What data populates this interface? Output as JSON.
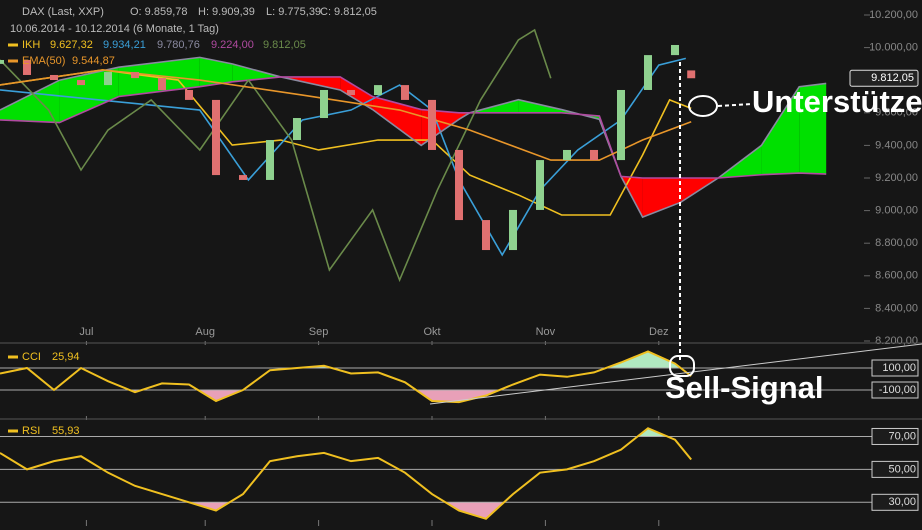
{
  "chart_data": {
    "type": "candlestick",
    "header": {
      "instrument": "DAX (Last, XXP)",
      "ohlc": [
        "O: 9.859,78",
        "H: 9.909,39",
        "L: 9.775,39",
        "C: 9.812,05"
      ],
      "period": "10.06.2014 - 10.12.2014 (6 Monate, 1 Tag)",
      "ikh_label": "IKH"
    },
    "last_price_label": "9.812,05",
    "annotations": [
      "Unterstützen",
      "Sell-Signal"
    ],
    "xlim": [
      0,
      160
    ],
    "xticks": [
      {
        "value": 16,
        "label": "Jul"
      },
      {
        "value": 38,
        "label": "Aug"
      },
      {
        "value": 59,
        "label": "Sep"
      },
      {
        "value": 80,
        "label": "Okt"
      },
      {
        "value": 101,
        "label": "Nov"
      },
      {
        "value": 122,
        "label": "Dez"
      }
    ],
    "ylim": [
      8200,
      10200
    ],
    "yticks": [
      {
        "value": 8200,
        "label": "8.200,00"
      },
      {
        "value": 8400,
        "label": "8.400,00"
      },
      {
        "value": 8600,
        "label": "8.600,00"
      },
      {
        "value": 8800,
        "label": "8.800,00"
      },
      {
        "value": 9000,
        "label": "9.000,00"
      },
      {
        "value": 9200,
        "label": "9.200,00"
      },
      {
        "value": 9400,
        "label": "9.400,00"
      },
      {
        "value": 9600,
        "label": "9.600,00"
      },
      {
        "value": 9800,
        "label": "9.800,00"
      },
      {
        "value": 10000,
        "label": "10.000,00"
      },
      {
        "value": 10200,
        "label": "10.200,00"
      }
    ],
    "up_color": "#8fd18f",
    "down_color": "#e07070",
    "x": [
      0,
      5,
      10,
      15,
      20,
      25,
      30,
      35,
      40,
      45,
      50,
      55,
      60,
      65,
      70,
      75,
      80,
      85,
      90,
      95,
      100,
      105,
      110,
      115,
      120,
      125,
      128
    ],
    "open": [
      9900,
      9924,
      9832,
      9801,
      9770,
      9850,
      9813,
      9740,
      9679,
      9218,
      9188,
      9433,
      9568,
      9740,
      9709,
      9770,
      9679,
      9372,
      8942,
      8758,
      9004,
      9310,
      9372,
      9310,
      9740,
      9954,
      9860
    ],
    "close": [
      9924,
      9832,
      9801,
      9770,
      9850,
      9813,
      9740,
      9679,
      9218,
      9188,
      9433,
      9568,
      9740,
      9709,
      9770,
      9679,
      9372,
      8942,
      8758,
      9004,
      9310,
      9372,
      9310,
      9740,
      9954,
      10016,
      9812
    ],
    "ema": {
      "name": "EMA(50)",
      "color": "#e8962a",
      "last_label": "9.544,87",
      "x": [
        0,
        19,
        37,
        56,
        74,
        87,
        102,
        111,
        119,
        128
      ],
      "values": [
        9771,
        9863,
        9801,
        9709,
        9617,
        9494,
        9310,
        9310,
        9433,
        9545
      ]
    },
    "ikh": [
      {
        "color": "#f0c020",
        "last_label": "9.627,32",
        "x": [
          0,
          19,
          33,
          43,
          52,
          59,
          70,
          80,
          87,
          96,
          104,
          113,
          119,
          124,
          128
        ],
        "values": [
          9771,
          9863,
          9801,
          9402,
          9433,
          9372,
          9433,
          9433,
          9218,
          9096,
          8973,
          8973,
          9341,
          9679,
          9627
        ]
      },
      {
        "color": "#3a9fd8",
        "last_label": "9.934,21",
        "x": [
          0,
          37,
          46,
          56,
          65,
          74,
          80,
          85,
          93,
          100,
          107,
          115,
          122,
          127
        ],
        "values": [
          9740,
          9617,
          9188,
          9556,
          9617,
          9770,
          9617,
          9188,
          8728,
          9126,
          9372,
          9556,
          9893,
          9934
        ]
      },
      {
        "color": "#8a8aa0",
        "last_label": "9.780,76",
        "x": [
          0,
          11,
          22,
          37,
          43,
          52,
          63,
          69,
          78,
          85,
          87,
          96,
          104,
          111,
          115,
          119,
          126,
          133,
          141,
          148,
          153
        ],
        "values": [
          9617,
          9800,
          9880,
          9940,
          9900,
          9820,
          9740,
          9620,
          9400,
          9560,
          9600,
          9680,
          9620,
          9560,
          9210,
          8960,
          9050,
          9200,
          9400,
          9760,
          9780
        ]
      },
      {
        "color": "#b04aa0",
        "last_label": "9.224,00",
        "x": [
          0,
          11,
          22,
          37,
          43,
          52,
          63,
          69,
          78,
          85,
          87,
          96,
          104,
          111,
          115,
          119,
          126,
          133,
          141,
          148,
          153
        ],
        "values": [
          9556,
          9540,
          9700,
          9760,
          9790,
          9820,
          9820,
          9700,
          9620,
          9600,
          9600,
          9600,
          9600,
          9580,
          9210,
          9200,
          9200,
          9200,
          9220,
          9230,
          9224
        ]
      },
      {
        "color": "#6a8a4a",
        "last_label": "9.812,05",
        "x": [
          0,
          9,
          15,
          20,
          28,
          37,
          46,
          54,
          61,
          69,
          74,
          81,
          89,
          96,
          99,
          102
        ],
        "values": [
          9924,
          9617,
          9249,
          9494,
          9679,
          9372,
          9801,
          9433,
          8636,
          9004,
          8574,
          9126,
          9679,
          10047,
          10108,
          9812
        ]
      }
    ],
    "cloud_up_color": "#00e000",
    "cloud_down_color": "#ff0000",
    "indicators": [
      {
        "name": "CCI",
        "last_label": "25,94",
        "color": "#f0c020",
        "ylim": [
          -300,
          300
        ],
        "yticks": [
          {
            "value": 100,
            "label": "100,00"
          },
          {
            "value": -100,
            "label": "-100,00"
          }
        ],
        "values": [
          50,
          100,
          -100,
          100,
          -20,
          -120,
          -40,
          -50,
          -200,
          -100,
          80,
          100,
          120,
          50,
          60,
          -30,
          -200,
          -210,
          -150,
          -50,
          40,
          20,
          60,
          150,
          250,
          140,
          26
        ]
      },
      {
        "name": "RSI",
        "last_label": "55,93",
        "color": "#f0c020",
        "ylim": [
          15,
          80
        ],
        "yticks": [
          {
            "value": 70,
            "label": "70,00"
          },
          {
            "value": 50,
            "label": "50,00"
          },
          {
            "value": 30,
            "label": "30,00"
          }
        ],
        "values": [
          60,
          50,
          55,
          58,
          48,
          40,
          35,
          30,
          25,
          35,
          55,
          58,
          60,
          55,
          57,
          48,
          35,
          25,
          20,
          35,
          48,
          50,
          55,
          62,
          75,
          68,
          56
        ]
      }
    ]
  }
}
